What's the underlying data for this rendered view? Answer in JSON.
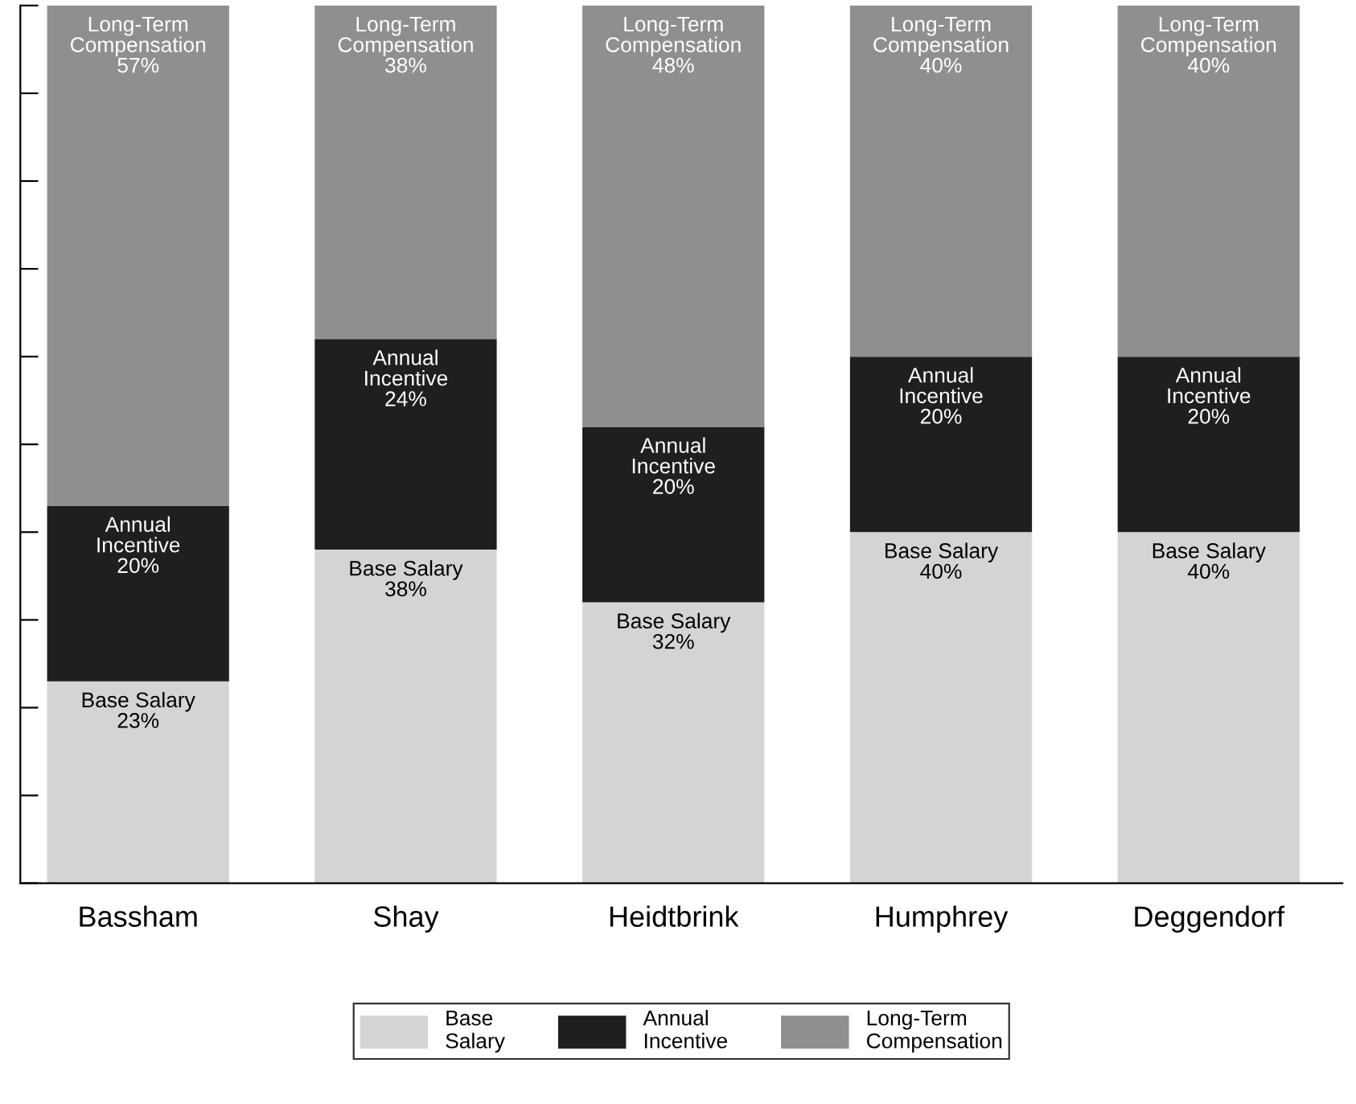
{
  "chart_data": {
    "type": "bar",
    "stacked": true,
    "categories": [
      "Bassham",
      "Shay",
      "Heidtbrink",
      "Humphrey",
      "Deggendorf"
    ],
    "ylim": [
      0,
      100
    ],
    "yticks": [
      {
        "value": 0,
        "label": null
      },
      {
        "value": 10,
        "label": null
      },
      {
        "value": 20,
        "label": null
      },
      {
        "value": 30,
        "label": null
      },
      {
        "value": 40,
        "label": null
      },
      {
        "value": 50,
        "label": null
      },
      {
        "value": 60,
        "label": null
      },
      {
        "value": 70,
        "label": null
      },
      {
        "value": 80,
        "label": null
      },
      {
        "value": 90,
        "label": null
      },
      {
        "value": 100,
        "label": null
      }
    ],
    "grid": false,
    "legend": "bottom",
    "series": [
      {
        "name": "Base Salary",
        "color": "#d4d4d4",
        "values": [
          23,
          38,
          32,
          40,
          40
        ],
        "value_labels": [
          "Base Salary\n23%",
          "Base Salary\n38%",
          "Base Salary\n32%",
          "Base Salary\n40%",
          "Base Salary\n40%"
        ]
      },
      {
        "name": "Annual Incentive",
        "color": "#1f1f1f",
        "values": [
          20,
          24,
          20,
          20,
          20
        ],
        "value_labels": [
          "Annual\nIncentive\n20%",
          "Annual\nIncentive\n24%",
          "Annual\nIncentive\n20%",
          "Annual\nIncentive\n20%",
          "Annual\nIncentive\n20%"
        ]
      },
      {
        "name": "Long-Term Compensation",
        "color": "#8f8f8f",
        "values": [
          57,
          38,
          48,
          40,
          40
        ],
        "value_labels": [
          "Long-Term\nCompensation\n57%",
          "Long-Term\nCompensation\n38%",
          "Long-Term\nCompensation\n48%",
          "Long-Term\nCompensation\n40%",
          "Long-Term\nCompensation\n40%"
        ]
      }
    ]
  }
}
